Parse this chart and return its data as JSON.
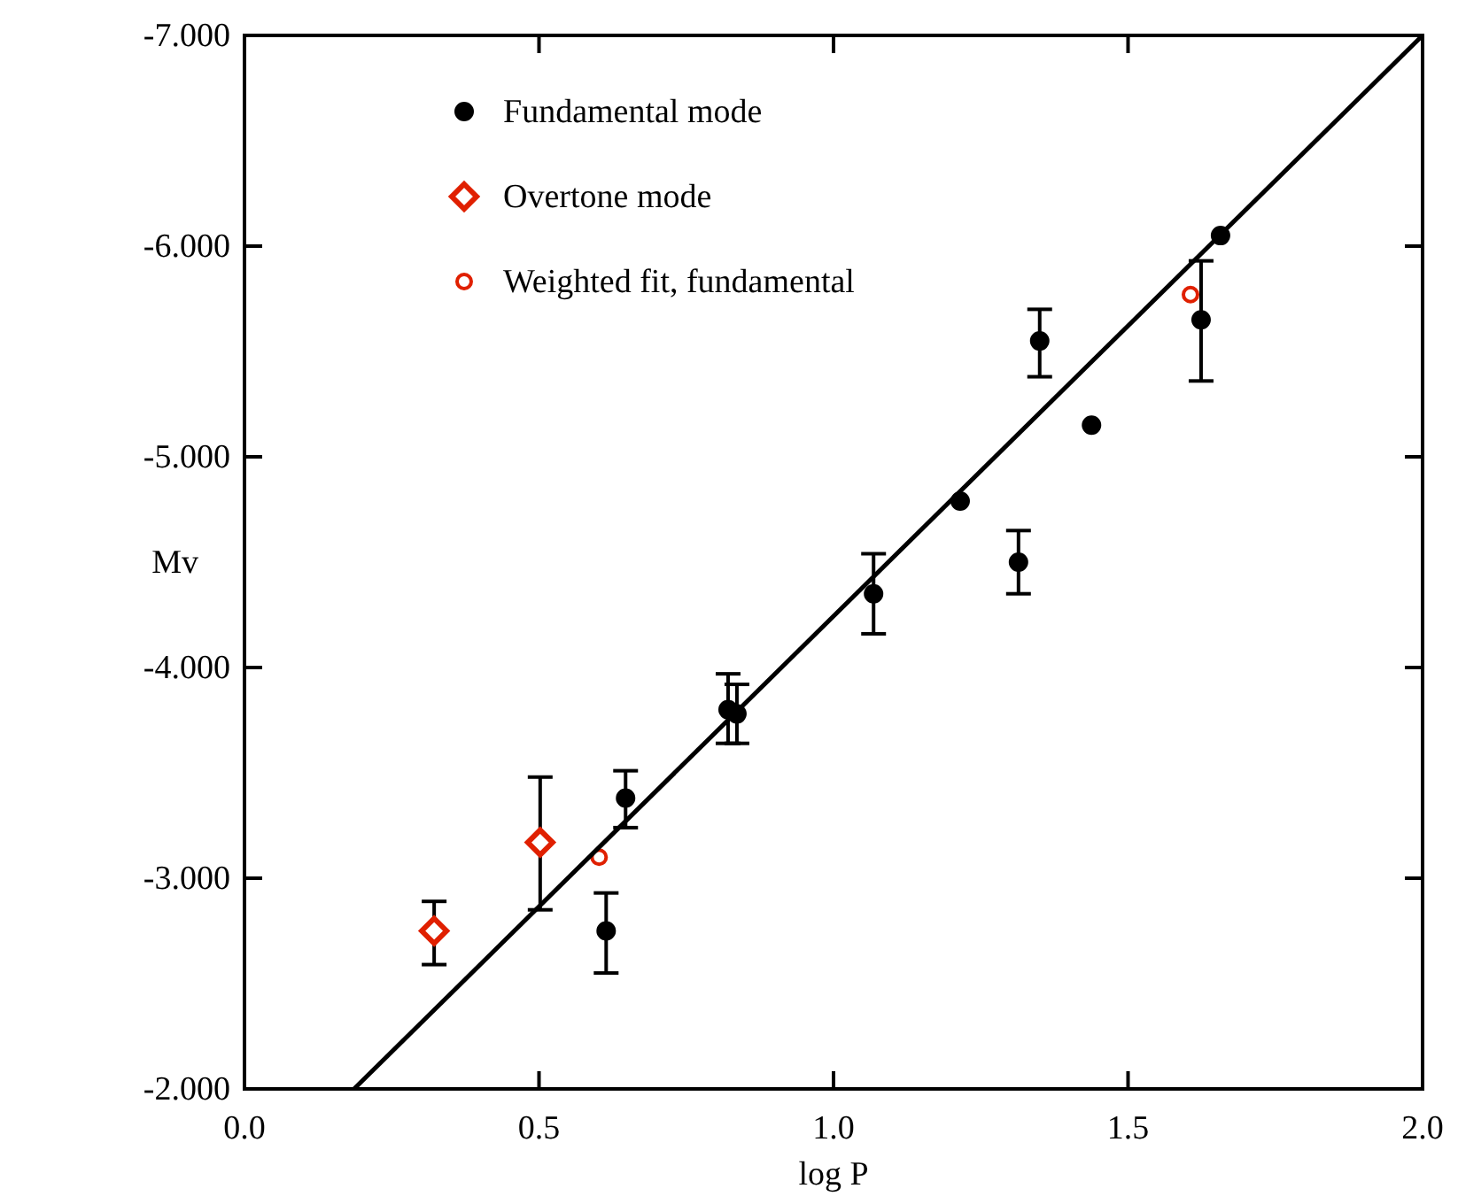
{
  "chart_data": {
    "type": "scatter",
    "xlabel": "log P",
    "ylabel": "Mv",
    "xlim": [
      0,
      2
    ],
    "xticks": [
      {
        "value": 0,
        "label": "0.0"
      },
      {
        "value": 0.5,
        "label": "0.5"
      },
      {
        "value": 1,
        "label": "1.0"
      },
      {
        "value": 1.5,
        "label": "1.5"
      },
      {
        "value": 2,
        "label": "2.0"
      }
    ],
    "ylim": [
      -2,
      -7
    ],
    "yticks": [
      {
        "value": -2,
        "label": "-2.000"
      },
      {
        "value": -3,
        "label": "-3.000"
      },
      {
        "value": -4,
        "label": "-4.000"
      },
      {
        "value": -5,
        "label": "-5.000"
      },
      {
        "value": -6,
        "label": "-6.000"
      },
      {
        "value": -7,
        "label": "-7.000"
      }
    ],
    "grid": false,
    "legend": "top left",
    "series": [
      {
        "name": "Fundamental mode",
        "color": "#000000",
        "marker": "circle",
        "x": [
          0.614,
          0.647,
          0.821,
          0.836,
          1.068,
          1.215,
          1.314,
          1.35,
          1.438,
          1.624,
          1.657
        ],
        "values": [
          -2.75,
          -3.38,
          -3.8,
          -3.78,
          -4.35,
          -4.79,
          -4.5,
          -5.55,
          -5.15,
          -5.65,
          -6.05
        ],
        "errors": [
          [
            -2.93,
            -2.55
          ],
          [
            -3.51,
            -3.24
          ],
          [
            -3.97,
            -3.64
          ],
          [
            -3.92,
            -3.64
          ],
          [
            -4.54,
            -4.16
          ],
          null,
          [
            -4.65,
            -4.35
          ],
          [
            -5.7,
            -5.38
          ],
          null,
          [
            -5.93,
            -5.36
          ],
          null
        ]
      },
      {
        "name": "Overtone mode",
        "color": "#e02000",
        "marker": "diamond",
        "x": [
          0.322,
          0.502
        ],
        "values": [
          -2.75,
          -3.17
        ],
        "errors": [
          [
            -2.89,
            -2.59
          ],
          [
            -3.48,
            -2.85
          ]
        ]
      },
      {
        "name": "Weighted fit, fundamental",
        "color": "#e02000",
        "marker": "circle",
        "x": [
          0.602,
          1.606
        ],
        "values": [
          -3.1,
          -5.77
        ]
      },
      {
        "type": "line",
        "color": "#000000",
        "line_style": "solid",
        "x": [
          0.186,
          2.0
        ],
        "values": [
          -2.0,
          -7.0
        ]
      }
    ]
  }
}
